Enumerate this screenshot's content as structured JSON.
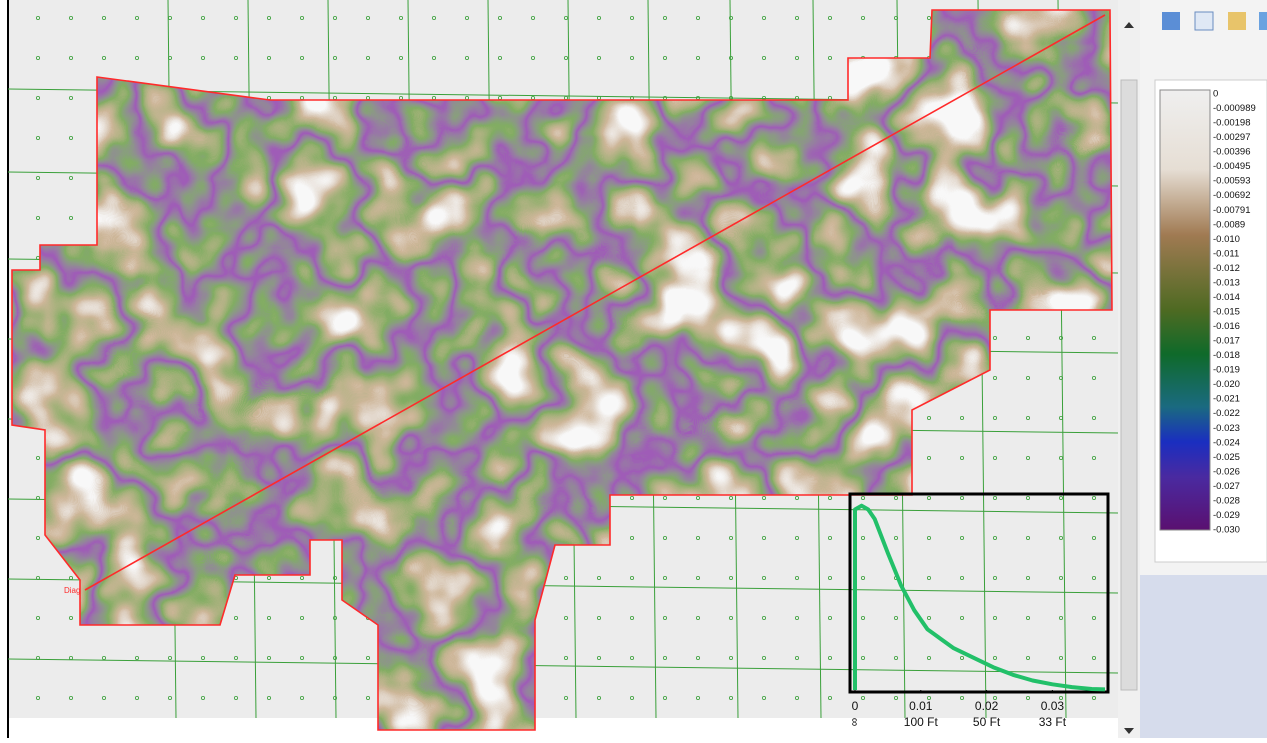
{
  "map": {
    "line_label": "Diag"
  },
  "legend": {
    "labels": [
      "0",
      "-0.000989",
      "-0.00198",
      "-0.00297",
      "-0.00396",
      "-0.00495",
      "-0.00593",
      "-0.00692",
      "-0.00791",
      "-0.0089",
      "-0.010",
      "-0.011",
      "-0.012",
      "-0.013",
      "-0.014",
      "-0.015",
      "-0.016",
      "-0.017",
      "-0.018",
      "-0.019",
      "-0.020",
      "-0.021",
      "-0.022",
      "-0.023",
      "-0.024",
      "-0.025",
      "-0.026",
      "-0.027",
      "-0.028",
      "-0.029",
      "-0.030"
    ]
  },
  "inset": {
    "xlim": [
      0,
      0.038
    ],
    "ylim": [
      0,
      1
    ],
    "xticks": [
      0,
      0.01,
      0.02,
      0.03
    ],
    "wavelength_labels": [
      "∞",
      "100 Ft",
      "50 Ft",
      "33 Ft"
    ],
    "curve": {
      "color": "#22c069",
      "x": [
        0,
        0,
        0.001,
        0.002,
        0.003,
        0.005,
        0.007,
        0.009,
        0.011,
        0.013,
        0.015,
        0.018,
        0.021,
        0.024,
        0.027,
        0.03,
        0.033,
        0.036,
        0.038
      ],
      "y": [
        0,
        0.95,
        0.97,
        0.95,
        0.9,
        0.72,
        0.55,
        0.42,
        0.32,
        0.27,
        0.22,
        0.17,
        0.12,
        0.08,
        0.05,
        0.03,
        0.015,
        0.005,
        0.003
      ]
    }
  }
}
